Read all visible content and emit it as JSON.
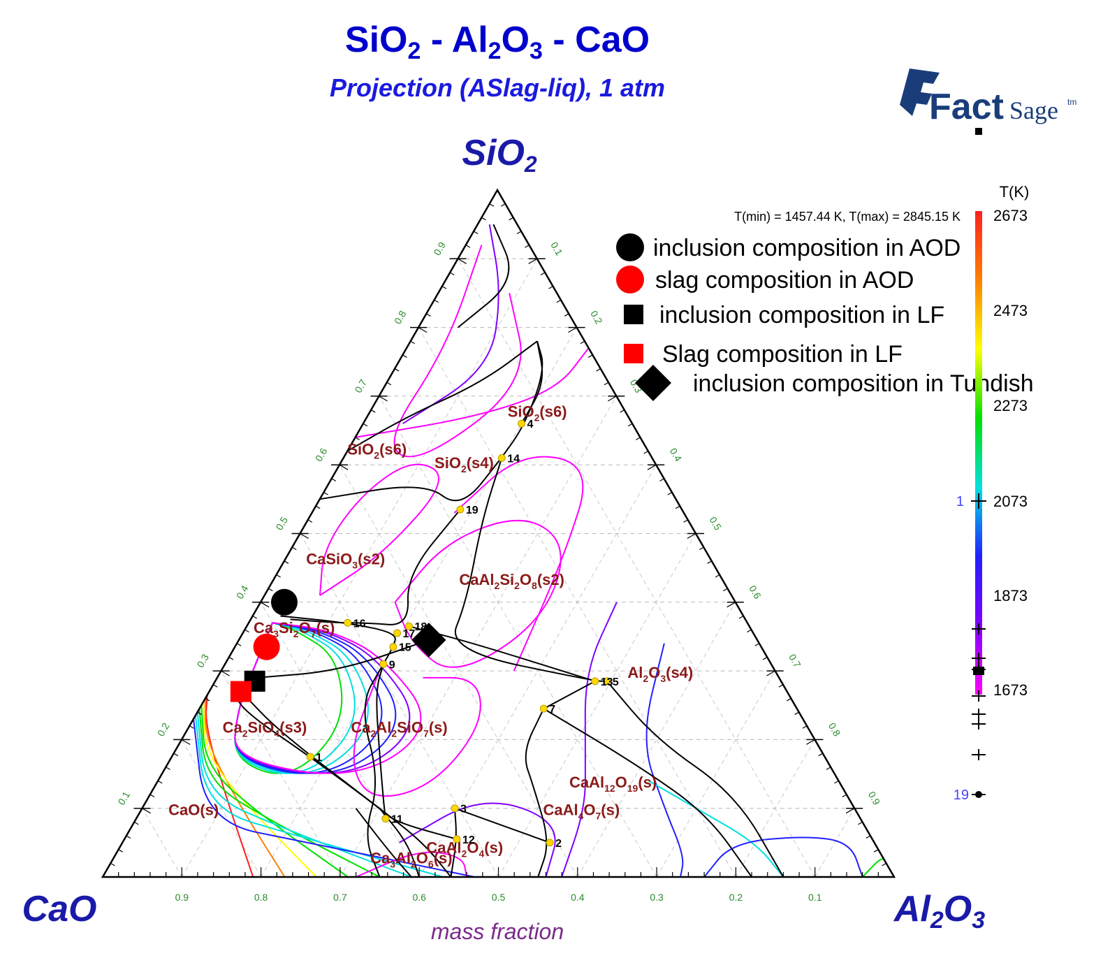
{
  "title": {
    "main_parts": [
      "SiO",
      "2",
      " - Al",
      "2",
      "O",
      "3",
      " - CaO"
    ],
    "subtitle": "Projection (ASlag-liq),  1 atm"
  },
  "logo": {
    "fact": "Fact",
    "sage": "Sage",
    "tm": "tm"
  },
  "apex_labels": {
    "top": {
      "base": "SiO",
      "sub": "2"
    },
    "left": {
      "text": "CaO"
    },
    "right": {
      "parts": [
        "Al",
        "2",
        "O",
        "3"
      ]
    }
  },
  "tminmax": "T(min) = 1457.44 K, T(max) = 2845.15 K",
  "legend": [
    {
      "text": "inclusion composition in AOD",
      "marker": "circle",
      "color": "#000000"
    },
    {
      "text": "slag composition in AOD",
      "marker": "circle",
      "color": "#ff0000"
    },
    {
      "text": "inclusion composition in LF",
      "marker": "square",
      "color": "#000000"
    },
    {
      "text": "Slag composition in LF",
      "marker": "square",
      "color": "#ff0000"
    },
    {
      "text": "inclusion composition in Tundish",
      "marker": "diamond",
      "color": "#000000"
    }
  ],
  "colorbar": {
    "title": "T(K)",
    "ticks": [
      "2673",
      "2473",
      "2273",
      "2073",
      "1873",
      "1673"
    ],
    "point_labels": [
      "1",
      "19"
    ],
    "colors": [
      "#ff2020",
      "#ff8000",
      "#ffff00",
      "#00e000",
      "#00e0e0",
      "#2020ff",
      "#8000ff",
      "#ff00ff"
    ]
  },
  "chart_data": {
    "type": "ternary",
    "title": "SiO2 - Al2O3 - CaO",
    "subtitle": "Projection (ASlag-liq),  1 atm",
    "axis_caption": "mass fraction",
    "components": [
      "SiO2",
      "CaO",
      "Al2O3"
    ],
    "tick_values": [
      "0.1",
      "0.2",
      "0.3",
      "0.4",
      "0.5",
      "0.6",
      "0.7",
      "0.8",
      "0.9"
    ],
    "bottom_tick_labels": [
      "0.9",
      "0.8",
      "0.7",
      "0.6",
      "0.5",
      "0.4",
      "0.3",
      "0.2",
      "0.1"
    ],
    "t_min_K": 1457.44,
    "t_max_K": 2845.15,
    "isotherm_range_K": [
      1673,
      2673
    ],
    "phase_regions": [
      {
        "label": "SiO2(s6)",
        "parts": [
          "SiO",
          "2",
          "(s6)"
        ],
        "al": 0.215,
        "si": 0.67
      },
      {
        "label": "SiO2(s6)",
        "parts": [
          "SiO",
          "2",
          "(s6)"
        ],
        "al": 0.04,
        "si": 0.615
      },
      {
        "label": "SiO2(s4)",
        "parts": [
          "SiO",
          "2",
          "(s4)"
        ],
        "al": 0.16,
        "si": 0.595
      },
      {
        "label": "CaSiO3(s2)",
        "parts": [
          "CaSiO",
          "3",
          "(s2)"
        ],
        "al": 0.08,
        "si": 0.455
      },
      {
        "label": "CaAl2Si2O8(s2)",
        "parts": [
          "CaAl",
          "2",
          "Si",
          "2",
          "O",
          "8",
          "(s2)"
        ],
        "al": 0.305,
        "si": 0.425
      },
      {
        "label": "Ca3Si2O7(s)",
        "parts": [
          "Ca",
          "3",
          "Si",
          "2",
          "O",
          "7",
          "(s)"
        ],
        "al": 0.065,
        "si": 0.355
      },
      {
        "label": "Al2O3(s4)",
        "parts": [
          "Al",
          "2",
          "O",
          "3",
          "(s4)"
        ],
        "al": 0.56,
        "si": 0.29
      },
      {
        "label": "Ca2SiO4(s3)",
        "parts": [
          "Ca",
          "2",
          "SiO",
          "4",
          "(s3)"
        ],
        "al": 0.1,
        "si": 0.21
      },
      {
        "label": "Ca2Al2SiO7(s)",
        "parts": [
          "Ca",
          "2",
          "Al",
          "2",
          "SiO",
          "7",
          "(s)"
        ],
        "al": 0.27,
        "si": 0.21
      },
      {
        "label": "CaAl12O19(s)",
        "parts": [
          "CaAl",
          "12",
          "O",
          "19",
          "(s)"
        ],
        "al": 0.58,
        "si": 0.13
      },
      {
        "label": "CaAl4O7(s)",
        "parts": [
          "CaAl",
          "4",
          "O",
          "7",
          "(s)"
        ],
        "al": 0.56,
        "si": 0.09
      },
      {
        "label": "CaO(s)",
        "parts": [
          "CaO(s)"
        ],
        "al": 0.07,
        "si": 0.09
      },
      {
        "label": "CaAl2O4(s)",
        "parts": [
          "CaAl",
          "2",
          "O",
          "4",
          "(s)"
        ],
        "al": 0.44,
        "si": 0.035
      },
      {
        "label": "Ca3Al2O6(s)",
        "parts": [
          "Ca",
          "3",
          "Al",
          "2",
          "O",
          "6",
          "(s)"
        ],
        "al": 0.38,
        "si": 0.02
      }
    ],
    "invariant_points": [
      {
        "label": "1",
        "al": 0.175,
        "si": 0.175
      },
      {
        "label": "2",
        "al": 0.54,
        "si": 0.05
      },
      {
        "label": "3",
        "al": 0.395,
        "si": 0.1
      },
      {
        "label": "4",
        "al": 0.2,
        "si": 0.66
      },
      {
        "label": "5",
        "al": 0.495,
        "si": 0.285
      },
      {
        "label": "7",
        "al": 0.435,
        "si": 0.245
      },
      {
        "label": "9",
        "al": 0.2,
        "si": 0.31
      },
      {
        "label": "11",
        "al": 0.315,
        "si": 0.085
      },
      {
        "label": "12",
        "al": 0.42,
        "si": 0.055
      },
      {
        "label": "13",
        "al": 0.48,
        "si": 0.285
      },
      {
        "label": "14",
        "al": 0.2,
        "si": 0.61
      },
      {
        "label": "15",
        "al": 0.2,
        "si": 0.335
      },
      {
        "label": "16",
        "al": 0.125,
        "si": 0.37
      },
      {
        "label": "17",
        "al": 0.195,
        "si": 0.355
      },
      {
        "label": "18",
        "al": 0.205,
        "si": 0.365
      },
      {
        "label": "19",
        "al": 0.185,
        "si": 0.535
      }
    ],
    "series": [
      {
        "name": "inclusion composition in AOD",
        "marker": "circle",
        "color": "#000000",
        "points": [
          {
            "al": 0.03,
            "si": 0.4
          }
        ]
      },
      {
        "name": "slag composition in AOD",
        "marker": "circle",
        "color": "#ff0000",
        "points": [
          {
            "al": 0.04,
            "si": 0.335
          }
        ]
      },
      {
        "name": "inclusion composition in LF",
        "marker": "square",
        "color": "#000000",
        "points": [
          {
            "al": 0.05,
            "si": 0.285
          }
        ]
      },
      {
        "name": "Slag composition in LF",
        "marker": "square",
        "color": "#ff0000",
        "points": [
          {
            "al": 0.04,
            "si": 0.27
          }
        ]
      },
      {
        "name": "inclusion composition in Tundish",
        "marker": "diamond",
        "color": "#000000",
        "points": [
          {
            "al": 0.24,
            "si": 0.345
          }
        ]
      }
    ]
  }
}
